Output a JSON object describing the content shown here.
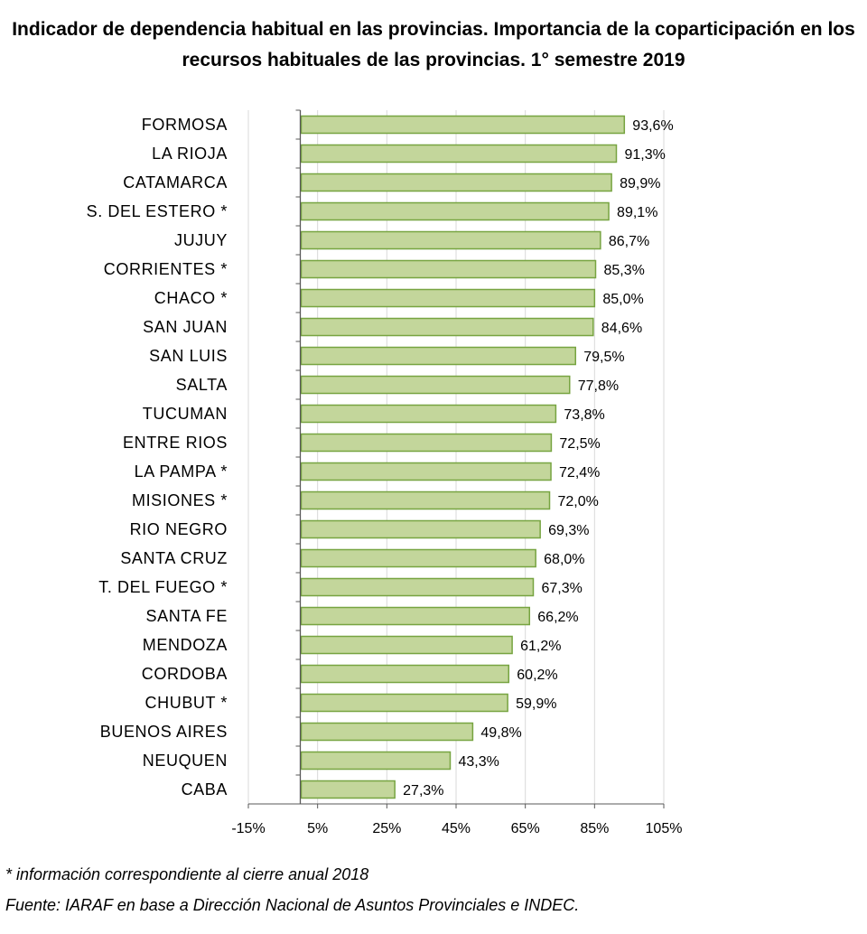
{
  "title_lines": [
    "Indicador de dependencia habitual en las provincias. Importancia de la coparticipación en los",
    "recursos habituales de las provincias. 1° semestre 2019"
  ],
  "footnotes": [
    "* información correspondiente al cierre anual 2018",
    "Fuente: IARAF en base a Dirección Nacional de Asuntos Provinciales e INDEC."
  ],
  "colors": {
    "bar_fill": "#c3d69b",
    "bar_stroke": "#77a441",
    "grid": "#d9d9d9",
    "axis": "#595959"
  },
  "chart_data": {
    "type": "bar",
    "orientation": "horizontal",
    "categories": [
      "FORMOSA",
      "LA RIOJA",
      "CATAMARCA",
      "S. DEL ESTERO *",
      "JUJUY",
      "CORRIENTES *",
      "CHACO *",
      "SAN JUAN",
      "SAN LUIS",
      "SALTA",
      "TUCUMAN",
      "ENTRE RIOS",
      "LA PAMPA *",
      "MISIONES *",
      "RIO NEGRO",
      "SANTA CRUZ",
      "T. DEL FUEGO *",
      "SANTA FE",
      "MENDOZA",
      "CORDOBA",
      "CHUBUT *",
      "BUENOS AIRES",
      "NEUQUEN",
      "CABA"
    ],
    "values": [
      93.6,
      91.3,
      89.9,
      89.1,
      86.7,
      85.3,
      85.0,
      84.6,
      79.5,
      77.8,
      73.8,
      72.5,
      72.4,
      72.0,
      69.3,
      68.0,
      67.3,
      66.2,
      61.2,
      60.2,
      59.9,
      49.8,
      43.3,
      27.3
    ],
    "data_labels": [
      "93,6%",
      "91,3%",
      "89,9%",
      "89,1%",
      "86,7%",
      "85,3%",
      "85,0%",
      "84,6%",
      "79,5%",
      "77,8%",
      "73,8%",
      "72,5%",
      "72,4%",
      "72,0%",
      "69,3%",
      "68,0%",
      "67,3%",
      "66,2%",
      "61,2%",
      "60,2%",
      "59,9%",
      "49,8%",
      "43,3%",
      "27,3%"
    ],
    "xlim": [
      -15,
      105
    ],
    "x_ticks": [
      -15,
      5,
      25,
      45,
      65,
      85,
      105
    ],
    "x_tick_labels": [
      "-15%",
      "5%",
      "25%",
      "45%",
      "65%",
      "85%",
      "105%"
    ],
    "grid": true,
    "legend": "none"
  }
}
